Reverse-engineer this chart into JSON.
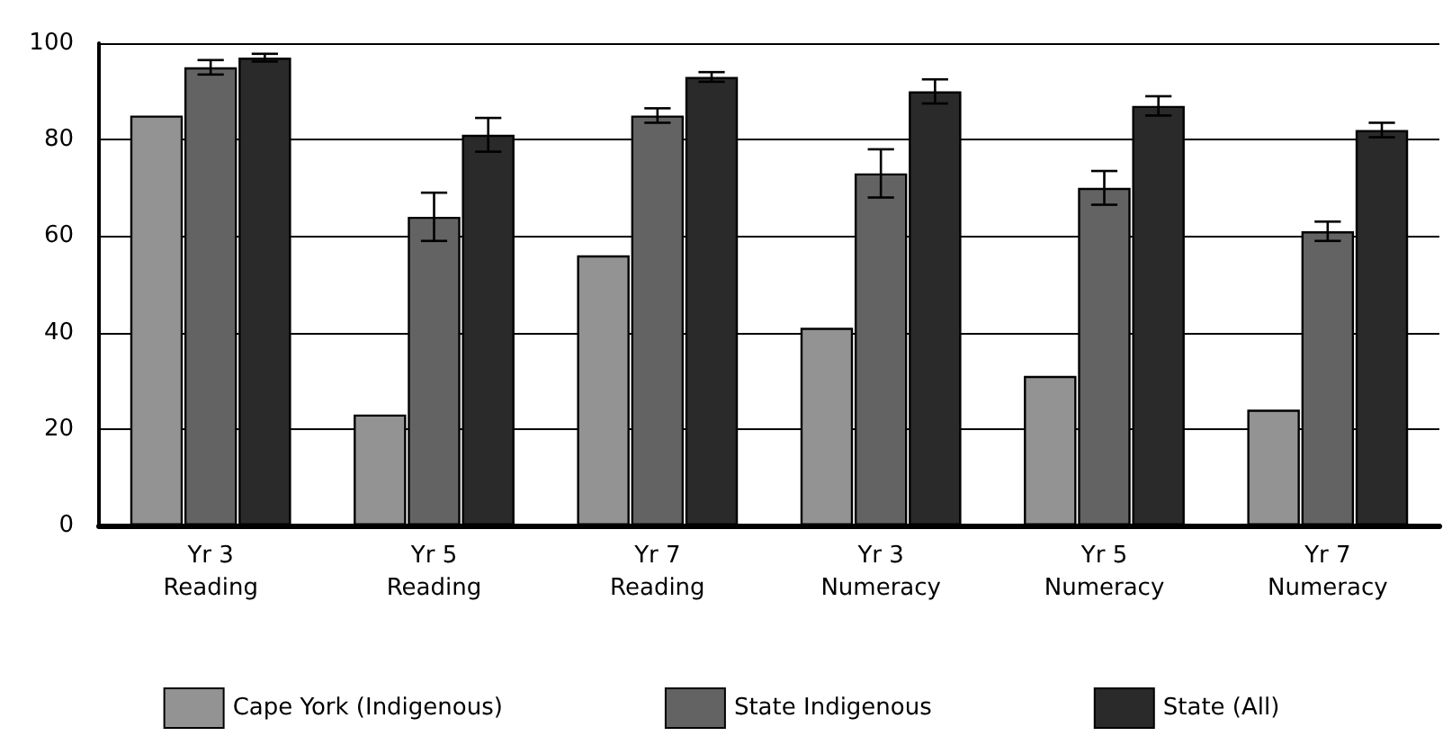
{
  "chart_data": {
    "type": "bar",
    "categories": [
      "Yr 3\nReading",
      "Yr 5\nReading",
      "Yr 7\nReading",
      "Yr 3\nNumeracy",
      "Yr 5\nNumeracy",
      "Yr 7\nNumeracy"
    ],
    "series": [
      {
        "name": "Cape York (Indigenous)",
        "color": "#939393",
        "values": [
          85,
          23,
          56,
          41,
          31,
          24
        ]
      },
      {
        "name": "State Indigenous",
        "color": "#636363",
        "values": [
          95,
          64,
          85,
          73,
          70,
          61
        ],
        "errors": [
          1.5,
          5,
          1.5,
          5,
          3.5,
          2
        ]
      },
      {
        "name": "State (All)",
        "color": "#2a2a2a",
        "values": [
          97,
          81,
          93,
          90,
          87,
          82
        ],
        "errors": [
          0.8,
          3.5,
          1,
          2.5,
          2,
          1.5
        ]
      }
    ],
    "ylim": [
      0,
      100
    ],
    "yticks": [
      0,
      20,
      40,
      60,
      80,
      100
    ],
    "grid": "y",
    "legend": "bottom"
  }
}
